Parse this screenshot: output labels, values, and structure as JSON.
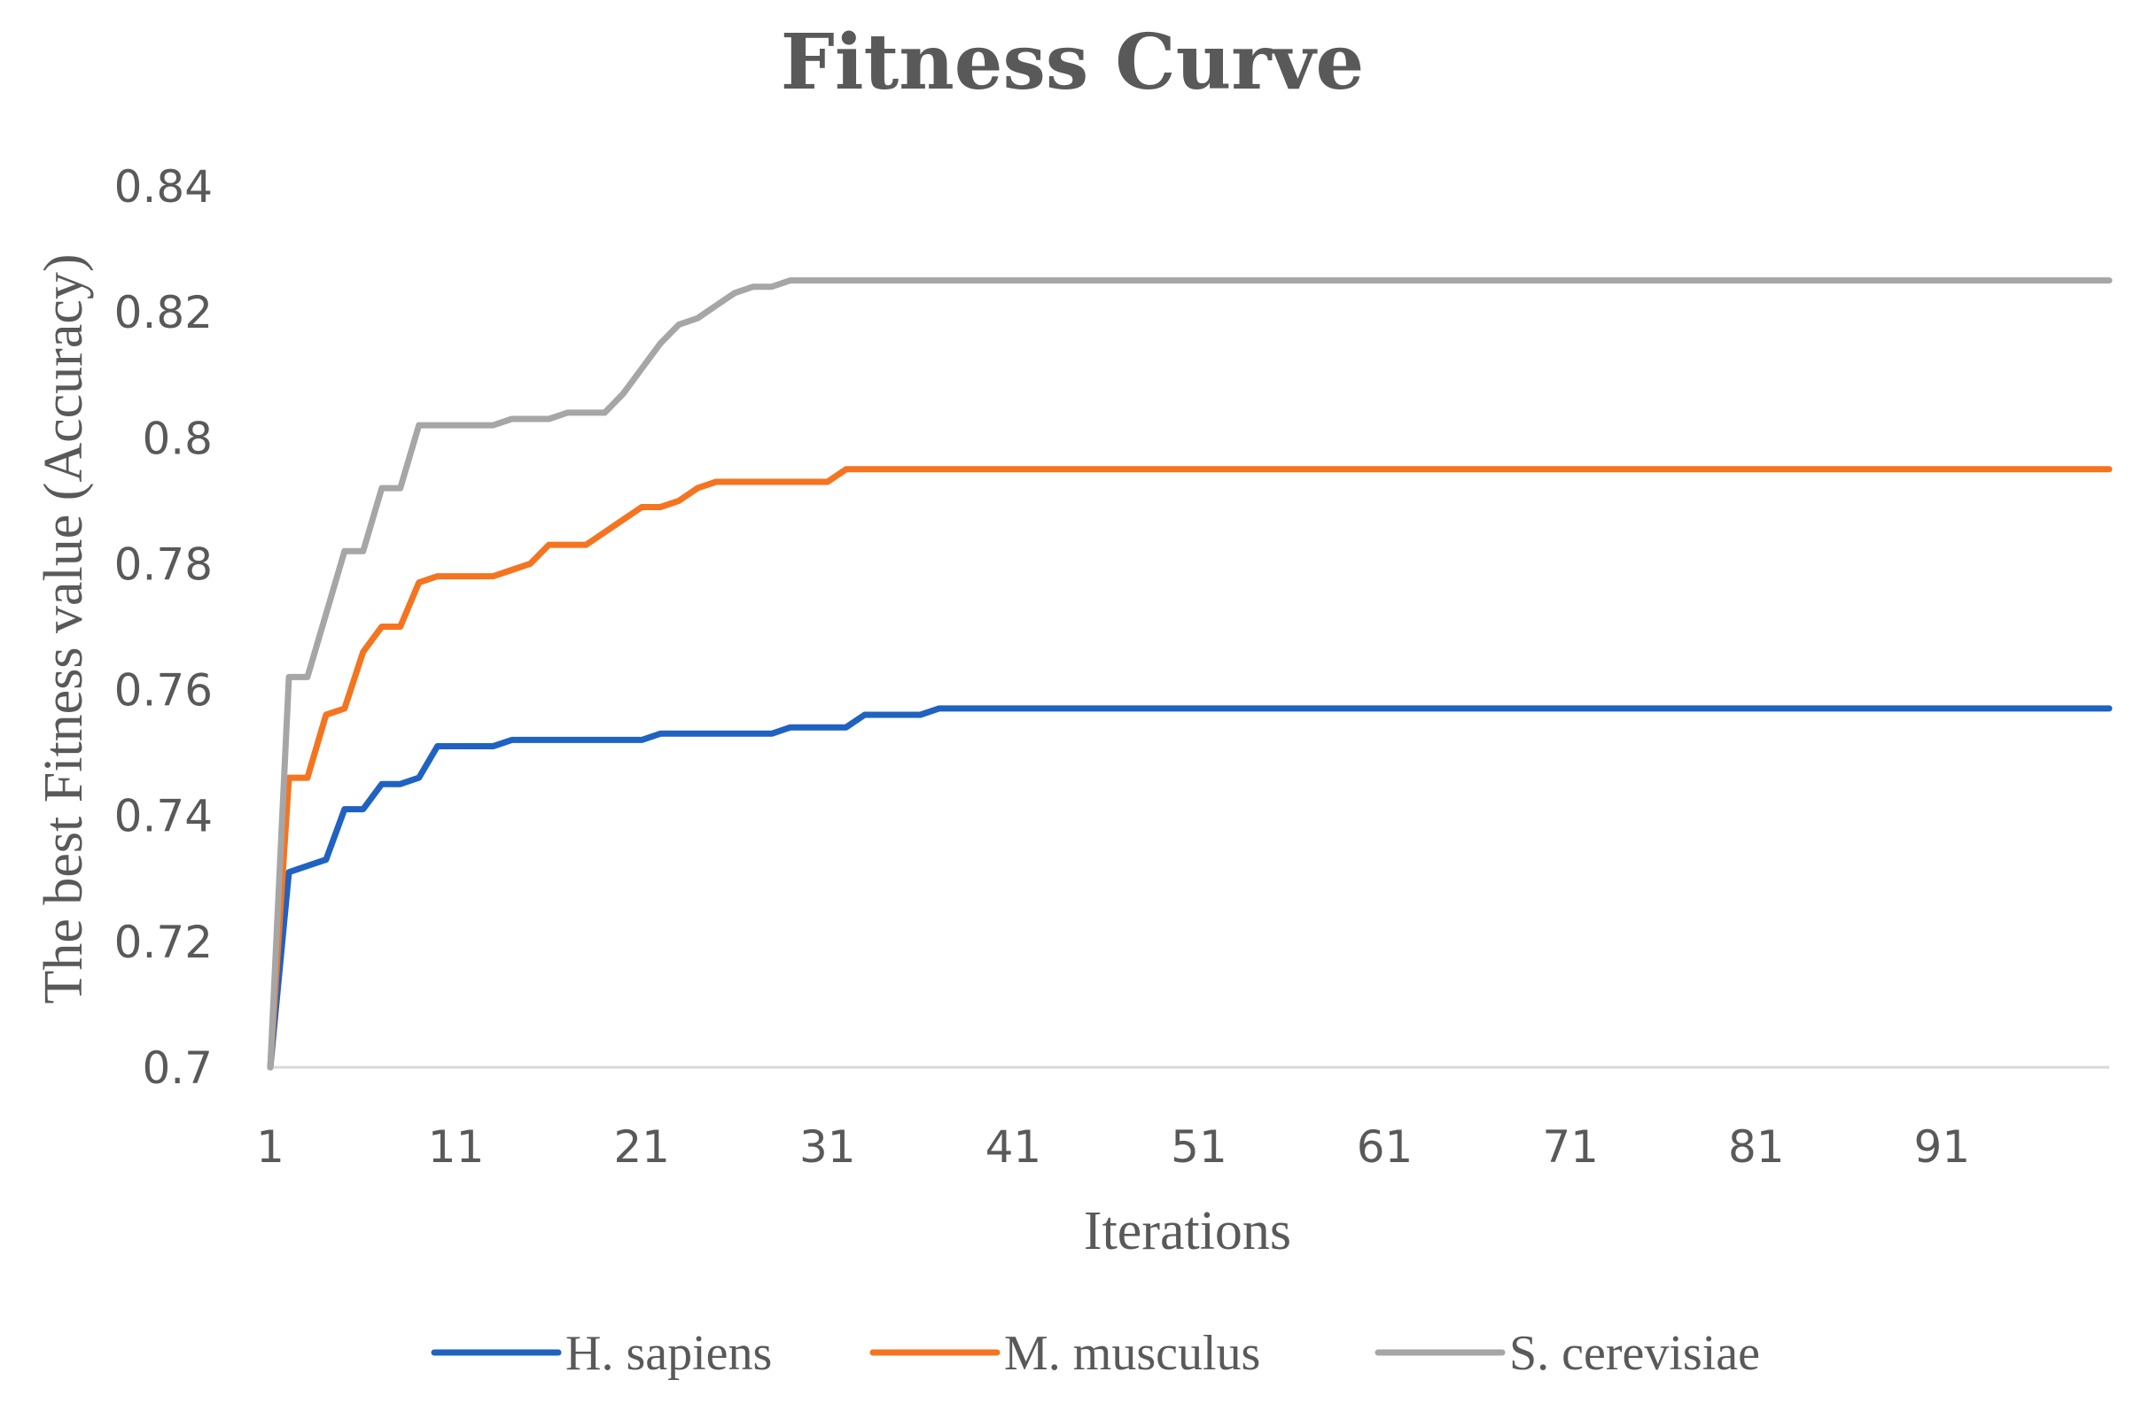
{
  "chart_data": {
    "type": "line",
    "title": "Fitness Curve",
    "xlabel": "Iterations",
    "ylabel": "The best Fitness value (Accuracy)",
    "xlim": [
      1,
      100
    ],
    "ylim": [
      0.7,
      0.84
    ],
    "x_tick_values": [
      1,
      11,
      21,
      31,
      41,
      51,
      61,
      71,
      81,
      91
    ],
    "x_tick_labels": [
      "1",
      "11",
      "21",
      "31",
      "41",
      "51",
      "61",
      "71",
      "81",
      "91"
    ],
    "y_tick_values": [
      0.7,
      0.72,
      0.74,
      0.76,
      0.78,
      0.8,
      0.82,
      0.84
    ],
    "y_tick_labels": [
      "0.7",
      "0.72",
      "0.74",
      "0.76",
      "0.78",
      "0.8",
      "0.82",
      "0.84"
    ],
    "grid": false,
    "legend_position": "bottom",
    "series": [
      {
        "name": "H. sapiens",
        "color": "#1F62C1",
        "points": [
          [
            1,
            0.7
          ],
          [
            2,
            0.731
          ],
          [
            3,
            0.732
          ],
          [
            4,
            0.733
          ],
          [
            5,
            0.741
          ],
          [
            6,
            0.741
          ],
          [
            7,
            0.745
          ],
          [
            8,
            0.745
          ],
          [
            9,
            0.746
          ],
          [
            10,
            0.751
          ],
          [
            11,
            0.751
          ],
          [
            13,
            0.751
          ],
          [
            14,
            0.752
          ],
          [
            20,
            0.752
          ],
          [
            21,
            0.752
          ],
          [
            22,
            0.753
          ],
          [
            24,
            0.753
          ],
          [
            28,
            0.753
          ],
          [
            29,
            0.754
          ],
          [
            32,
            0.754
          ],
          [
            33,
            0.756
          ],
          [
            36,
            0.756
          ],
          [
            37,
            0.757
          ],
          [
            100,
            0.757
          ]
        ]
      },
      {
        "name": "M. musculus",
        "color": "#F5741F",
        "points": [
          [
            1,
            0.7
          ],
          [
            2,
            0.746
          ],
          [
            3,
            0.746
          ],
          [
            4,
            0.756
          ],
          [
            5,
            0.757
          ],
          [
            6,
            0.766
          ],
          [
            7,
            0.77
          ],
          [
            8,
            0.77
          ],
          [
            9,
            0.777
          ],
          [
            10,
            0.778
          ],
          [
            13,
            0.778
          ],
          [
            14,
            0.779
          ],
          [
            15,
            0.78
          ],
          [
            16,
            0.783
          ],
          [
            18,
            0.783
          ],
          [
            19,
            0.785
          ],
          [
            20,
            0.787
          ],
          [
            21,
            0.789
          ],
          [
            22,
            0.789
          ],
          [
            23,
            0.79
          ],
          [
            24,
            0.792
          ],
          [
            25,
            0.793
          ],
          [
            31,
            0.793
          ],
          [
            32,
            0.795
          ],
          [
            100,
            0.795
          ]
        ]
      },
      {
        "name": "S. cerevisiae",
        "color": "#A6A6A6",
        "points": [
          [
            1,
            0.7
          ],
          [
            2,
            0.762
          ],
          [
            3,
            0.762
          ],
          [
            4,
            0.772
          ],
          [
            5,
            0.782
          ],
          [
            6,
            0.782
          ],
          [
            7,
            0.792
          ],
          [
            8,
            0.792
          ],
          [
            9,
            0.802
          ],
          [
            10,
            0.802
          ],
          [
            13,
            0.802
          ],
          [
            14,
            0.803
          ],
          [
            16,
            0.803
          ],
          [
            17,
            0.804
          ],
          [
            19,
            0.804
          ],
          [
            20,
            0.807
          ],
          [
            21,
            0.811
          ],
          [
            22,
            0.815
          ],
          [
            23,
            0.818
          ],
          [
            24,
            0.819
          ],
          [
            25,
            0.821
          ],
          [
            26,
            0.823
          ],
          [
            27,
            0.824
          ],
          [
            28,
            0.824
          ],
          [
            29,
            0.825
          ],
          [
            100,
            0.825
          ]
        ]
      }
    ]
  }
}
